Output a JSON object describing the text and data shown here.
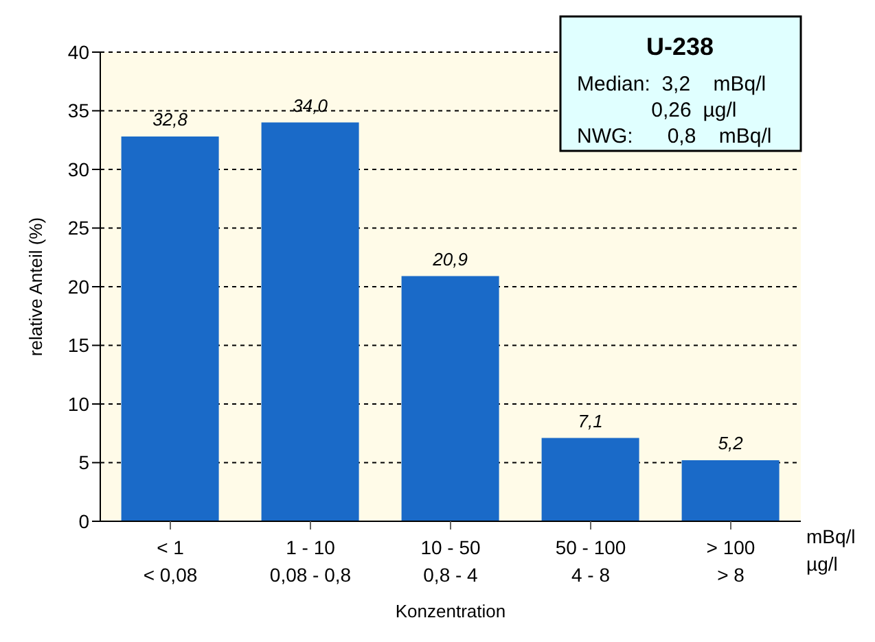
{
  "chart_data": {
    "type": "bar",
    "xlabel": "Konzentration",
    "ylabel": "relative Anteil (%)",
    "categories": [
      "< 1\n< 0,08",
      "1 - 10\n0,08 - 0,8",
      "10 - 50\n0,8 - 4",
      "50 - 100\n4 - 8",
      "> 100\n> 8"
    ],
    "values": [
      32.8,
      34.0,
      20.9,
      7.1,
      5.2
    ],
    "value_labels": [
      "32,8",
      "34,0",
      "20,9",
      "7,1",
      "5,2"
    ],
    "color": "#1a6ac8",
    "ylim": [
      0,
      40
    ],
    "yticks": [
      0,
      5,
      10,
      15,
      20,
      25,
      30,
      35,
      40
    ],
    "grid": "y",
    "annotations": [
      "U-238",
      "Median:  3,2    mBq/l",
      "             0,26  µg/l",
      "NWG:      0,8    mBq/l",
      "mBq/l\nµg/l"
    ]
  }
}
